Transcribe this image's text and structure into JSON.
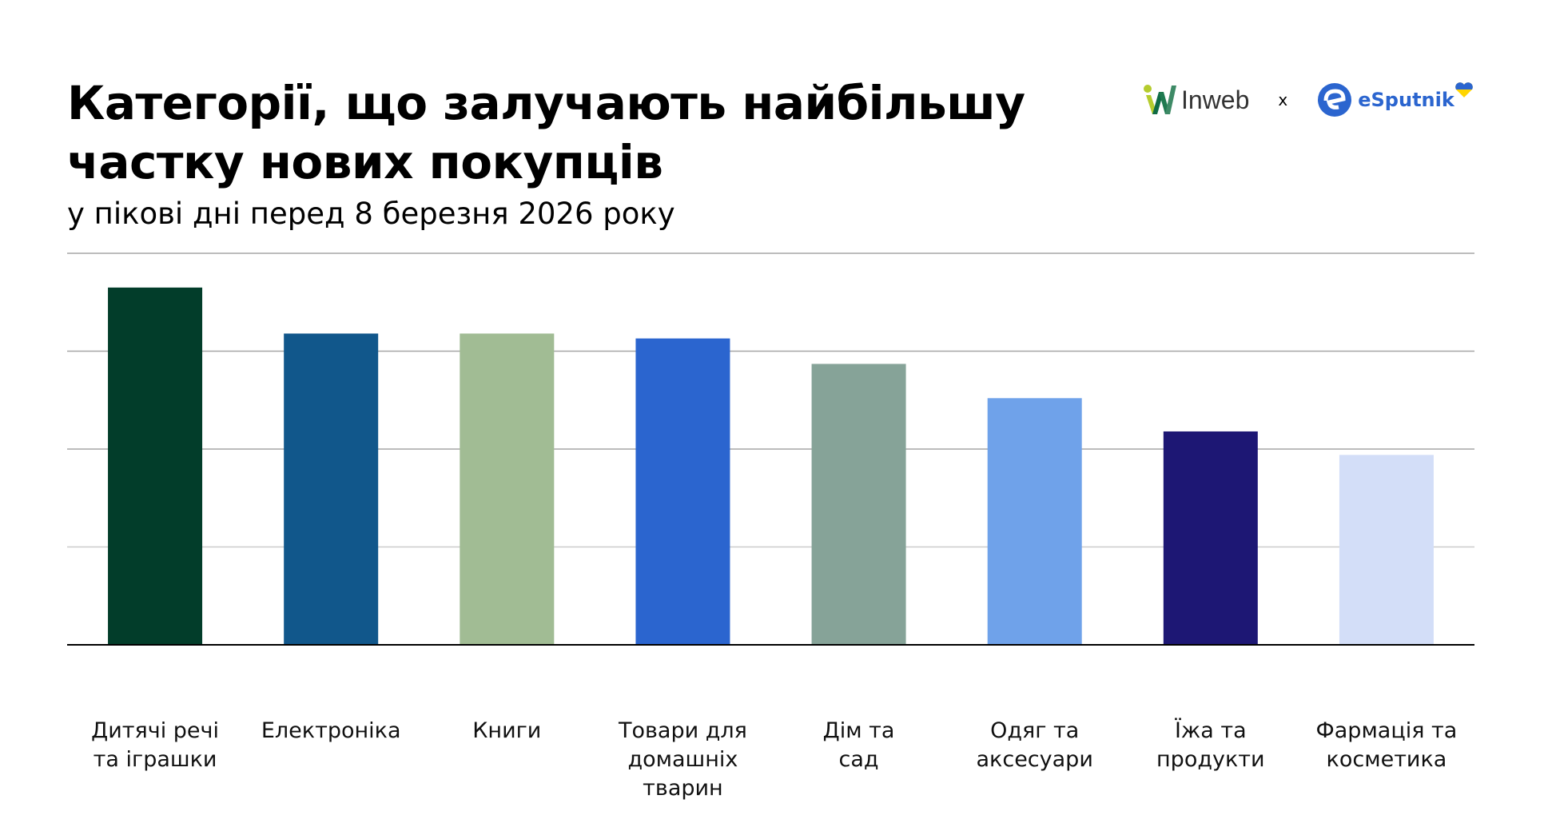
{
  "header": {
    "title": "Категорії, що залучають найбільшу частку нових покупців",
    "subtitle": "у пікові дні перед 8 березня 2026 року"
  },
  "logos": {
    "inweb": "Inweb",
    "separator": "x",
    "esputnik": "eSputnik"
  },
  "chart_data": {
    "type": "bar",
    "title": "Категорії, що залучають найбільшу частку нових покупців",
    "subtitle": "у пікові дні перед 8 березня 2026 року",
    "xlabel": "",
    "ylabel": "",
    "y_axis_labels_shown": false,
    "ylim": [
      0,
      4
    ],
    "grid": true,
    "categories": [
      [
        "Дитячі речі",
        "та іграшки"
      ],
      [
        "Електроніка"
      ],
      [
        "Книги"
      ],
      [
        "Товари для",
        "домашніх",
        "тварин"
      ],
      [
        "Дім та",
        "сад"
      ],
      [
        "Одяг та",
        "аксесуари"
      ],
      [
        "Їжа та",
        "продукти"
      ],
      [
        "Фармація та",
        "косметика"
      ]
    ],
    "values": [
      3.65,
      3.18,
      3.18,
      3.13,
      2.87,
      2.52,
      2.18,
      1.94
    ],
    "colors": [
      "#023D2A",
      "#11578B",
      "#A1BC94",
      "#2B65CF",
      "#86A398",
      "#6FA2EA",
      "#1D1774",
      "#D3DEF8"
    ]
  }
}
